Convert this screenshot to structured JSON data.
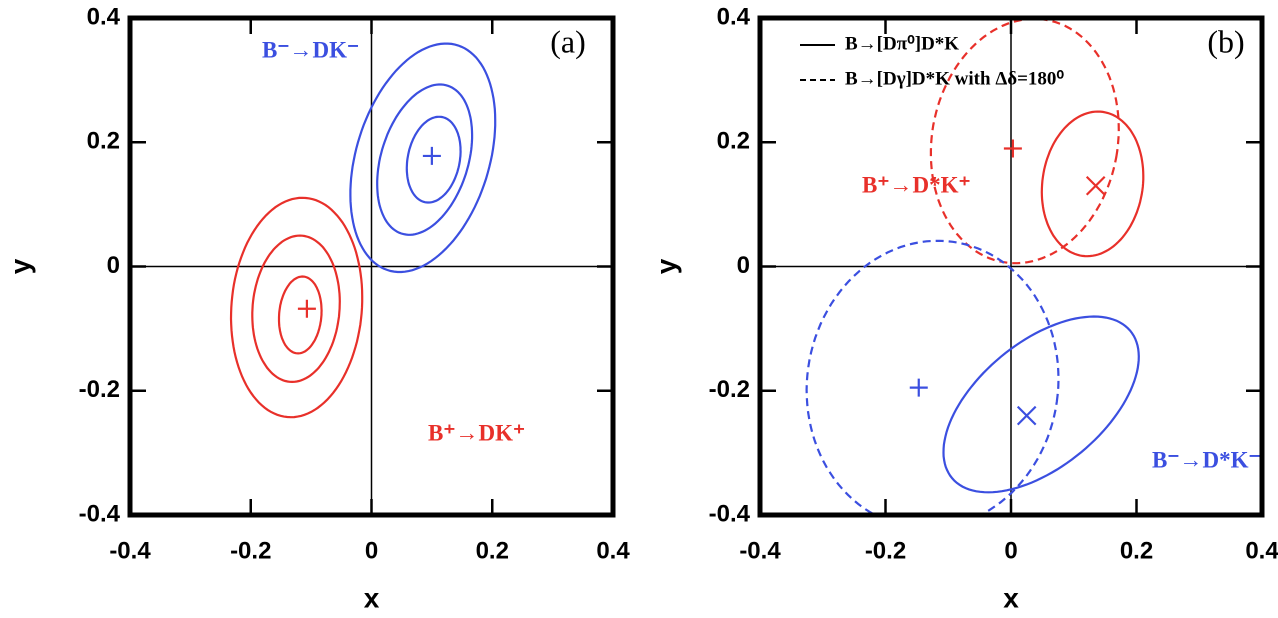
{
  "chart_data": [
    {
      "type": "contour",
      "panel_label": "(a)",
      "x_label": "x",
      "y_label": "y",
      "xlim": [
        -0.4,
        0.4
      ],
      "ylim": [
        -0.4,
        0.4
      ],
      "xticks": [
        -0.4,
        -0.2,
        0,
        0.2,
        0.4
      ],
      "yticks": [
        -0.4,
        -0.2,
        0,
        0.2,
        0.4
      ],
      "zero_lines": true,
      "contours": [
        {
          "color": "#3b4fe0",
          "dash": false,
          "cx": 0.085,
          "cy": 0.175,
          "rx": 0.11,
          "ry": 0.19,
          "angle": -18
        },
        {
          "color": "#3b4fe0",
          "dash": false,
          "cx": 0.088,
          "cy": 0.172,
          "rx": 0.072,
          "ry": 0.125,
          "angle": -18
        },
        {
          "color": "#3b4fe0",
          "dash": false,
          "cx": 0.103,
          "cy": 0.172,
          "rx": 0.043,
          "ry": 0.07,
          "angle": -12
        },
        {
          "color": "#e8302a",
          "dash": false,
          "cx": -0.124,
          "cy": -0.066,
          "rx": 0.108,
          "ry": 0.177,
          "angle": -5
        },
        {
          "color": "#e8302a",
          "dash": false,
          "cx": -0.125,
          "cy": -0.068,
          "rx": 0.072,
          "ry": 0.118,
          "angle": -5
        },
        {
          "color": "#e8302a",
          "dash": false,
          "cx": -0.118,
          "cy": -0.078,
          "rx": 0.035,
          "ry": 0.062,
          "angle": -5
        }
      ],
      "markers": [
        {
          "shape": "+",
          "color": "#3b4fe0",
          "x": 0.1,
          "y": 0.178
        },
        {
          "shape": "+",
          "color": "#e8302a",
          "x": -0.107,
          "y": -0.068
        }
      ],
      "annotations": [
        {
          "text": "B⁻→DK⁻",
          "color": "#3b4fe0"
        },
        {
          "text": "B⁺→DK⁺",
          "color": "#e8302a"
        }
      ]
    },
    {
      "type": "contour",
      "panel_label": "(b)",
      "x_label": "x",
      "y_label": "y",
      "xlim": [
        -0.4,
        0.4
      ],
      "ylim": [
        -0.4,
        0.4
      ],
      "xticks": [
        -0.4,
        -0.2,
        0,
        0.2,
        0.4
      ],
      "yticks": [
        -0.4,
        -0.2,
        0,
        0.2,
        0.4
      ],
      "zero_lines": true,
      "contours": [
        {
          "color": "#e8302a",
          "dash": false,
          "cx": 0.13,
          "cy": 0.133,
          "rx": 0.08,
          "ry": 0.117,
          "angle": -8
        },
        {
          "color": "#e8302a",
          "dash": true,
          "cx": 0.022,
          "cy": 0.202,
          "rx": 0.148,
          "ry": 0.198,
          "angle": -10
        },
        {
          "color": "#3b4fe0",
          "dash": false,
          "cx": 0.048,
          "cy": -0.222,
          "rx": 0.185,
          "ry": 0.1,
          "angle": 40
        },
        {
          "color": "#3b4fe0",
          "dash": true,
          "cx": -0.125,
          "cy": -0.19,
          "rx": 0.2,
          "ry": 0.232,
          "angle": -8
        }
      ],
      "markers": [
        {
          "shape": "+",
          "color": "#e8302a",
          "x": 0.003,
          "y": 0.19
        },
        {
          "shape": "x",
          "color": "#e8302a",
          "x": 0.135,
          "y": 0.13
        },
        {
          "shape": "+",
          "color": "#3b4fe0",
          "x": -0.147,
          "y": -0.195
        },
        {
          "shape": "x",
          "color": "#3b4fe0",
          "x": 0.025,
          "y": -0.24
        }
      ],
      "annotations": [
        {
          "text": "B⁺→D*K⁺",
          "color": "#e8302a"
        },
        {
          "text": "B⁻→D*K⁻",
          "color": "#3b4fe0"
        }
      ],
      "legend": [
        {
          "label": "B→[Dπ⁰]D*K",
          "dash": false
        },
        {
          "label": "B→[Dγ]D*K with Δδ=180⁰",
          "dash": true
        }
      ]
    }
  ]
}
